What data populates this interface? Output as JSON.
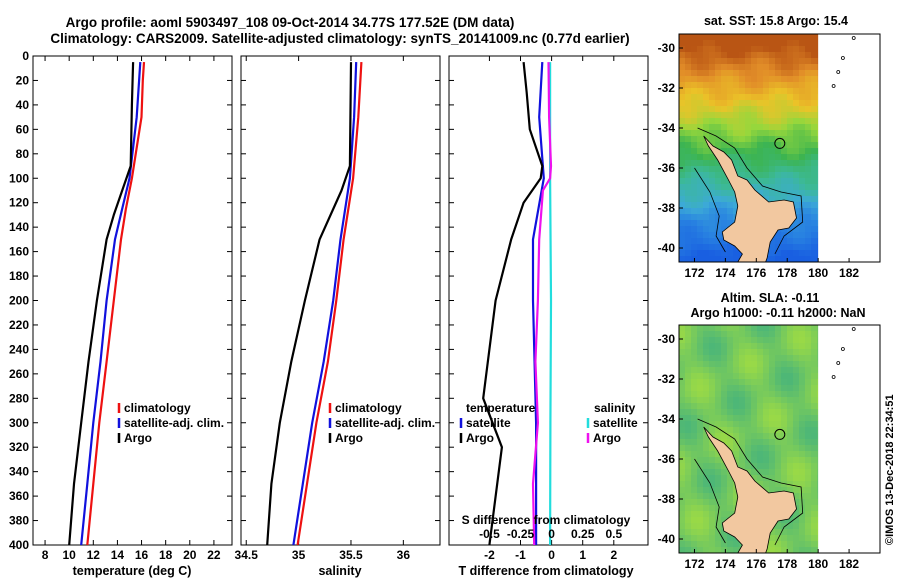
{
  "header": {
    "line1": "Argo profile: aoml 5903497_108 09-Oct-2014 34.77S 177.52E (DM data)",
    "line2": "Climatology: CARS2009. Satellite-adjusted climatology: synTS_20141009.nc (0.77d earlier)"
  },
  "watermark": "©IMOS 13-Dec-2018 22:34:51",
  "colors": {
    "climatology": "#ee1111",
    "satellite": "#1111dd",
    "argo": "#000000",
    "salinity_satellite": "#22dddd",
    "salinity_argo": "#ee11ee",
    "land": "#f2c8a0"
  },
  "chart_data": [
    {
      "type": "line",
      "name": "temperature",
      "xlabel": "temperature (deg C)",
      "ylabel": "",
      "xlim": [
        7,
        23.5
      ],
      "ylim": [
        400,
        0
      ],
      "xticks": [
        8,
        10,
        12,
        14,
        16,
        18,
        20,
        22
      ],
      "yticks": [
        0,
        20,
        40,
        60,
        80,
        100,
        120,
        140,
        160,
        180,
        200,
        220,
        240,
        260,
        280,
        300,
        320,
        340,
        360,
        380,
        400
      ],
      "legend": {
        "position": "bottom-right",
        "labels": [
          "climatology",
          "satellite-adj. clim.",
          "Argo"
        ]
      },
      "series": [
        {
          "name": "climatology",
          "color": "#ee1111",
          "depth": [
            5,
            20,
            50,
            75,
            100,
            125,
            150,
            200,
            250,
            300,
            350,
            400
          ],
          "values": [
            16.2,
            16.1,
            16.0,
            15.6,
            15.2,
            14.7,
            14.3,
            13.7,
            13.1,
            12.5,
            12.0,
            11.5
          ]
        },
        {
          "name": "satellite-adj. clim.",
          "color": "#1111dd",
          "depth": [
            5,
            20,
            50,
            75,
            100,
            125,
            150,
            200,
            250,
            300,
            350,
            400
          ],
          "values": [
            15.9,
            15.8,
            15.6,
            15.3,
            15.0,
            14.4,
            13.8,
            13.1,
            12.6,
            12.0,
            11.5,
            11.0
          ]
        },
        {
          "name": "Argo",
          "color": "#000000",
          "depth": [
            5,
            40,
            90,
            110,
            130,
            150,
            200,
            250,
            300,
            350,
            400
          ],
          "values": [
            15.3,
            15.2,
            15.1,
            14.4,
            13.7,
            13.1,
            12.3,
            11.6,
            11.0,
            10.4,
            10.0
          ]
        }
      ]
    },
    {
      "type": "line",
      "name": "salinity",
      "xlabel": "salinity",
      "ylabel": "",
      "xlim": [
        34.45,
        36.35
      ],
      "ylim": [
        400,
        0
      ],
      "xticks": [
        34.5,
        35,
        35.5,
        36
      ],
      "xticklabels": [
        "34.5",
        "35",
        "35.5",
        "36"
      ],
      "legend": {
        "position": "bottom-right",
        "labels": [
          "climatology",
          "satellite-adj. clim.",
          "Argo"
        ]
      },
      "series": [
        {
          "name": "climatology",
          "color": "#ee1111",
          "depth": [
            5,
            50,
            100,
            150,
            200,
            250,
            300,
            350,
            400
          ],
          "values": [
            35.6,
            35.57,
            35.52,
            35.43,
            35.36,
            35.28,
            35.17,
            35.08,
            34.99
          ]
        },
        {
          "name": "satellite-adj. clim.",
          "color": "#1111dd",
          "depth": [
            5,
            50,
            100,
            150,
            200,
            250,
            300,
            350,
            400
          ],
          "values": [
            35.55,
            35.53,
            35.49,
            35.4,
            35.33,
            35.24,
            35.13,
            35.04,
            34.95
          ]
        },
        {
          "name": "Argo",
          "color": "#000000",
          "depth": [
            5,
            90,
            110,
            150,
            200,
            250,
            300,
            350,
            400
          ],
          "values": [
            35.5,
            35.49,
            35.41,
            35.2,
            35.06,
            34.93,
            34.82,
            34.74,
            34.7
          ]
        }
      ]
    },
    {
      "type": "line",
      "name": "difference",
      "xlabel": "T difference from climatology",
      "xlabel_top": "S difference from climatology",
      "xlim": [
        -3.3,
        3.1
      ],
      "ylim": [
        400,
        0
      ],
      "xticks": [
        -2,
        -1,
        0,
        1,
        2
      ],
      "xticklabels": [
        "-2",
        "-1",
        "0",
        "1",
        "2"
      ],
      "s_xticks": [
        -0.5,
        -0.25,
        0,
        0.25,
        0.5
      ],
      "s_xticklabels": [
        "-0.5",
        "-0.25",
        "0",
        "0.25",
        "0.5"
      ],
      "s_scale": "x_position = S_diff * 4",
      "legend": {
        "position": "bottom",
        "temperature_title": "temperature",
        "salinity_title": "salinity",
        "temperature_labels": [
          "satellite",
          "Argo"
        ],
        "salinity_labels": [
          "satellite",
          "Argo"
        ]
      },
      "series": [
        {
          "name": "T satellite",
          "color": "#1111dd",
          "depth": [
            5,
            50,
            100,
            150,
            200,
            300,
            400
          ],
          "values": [
            -0.3,
            -0.4,
            -0.25,
            -0.6,
            -0.6,
            -0.5,
            -0.5
          ]
        },
        {
          "name": "T Argo",
          "color": "#000000",
          "depth": [
            5,
            30,
            60,
            90,
            100,
            120,
            150,
            200,
            280,
            320,
            400
          ],
          "values": [
            -0.9,
            -0.8,
            -0.7,
            -0.3,
            -0.35,
            -0.9,
            -1.3,
            -1.8,
            -2.2,
            -1.6,
            -2.0
          ]
        },
        {
          "name": "S satellite",
          "color": "#22dddd",
          "depth": [
            5,
            100,
            200,
            300,
            400
          ],
          "values": [
            -0.0125,
            -0.0125,
            -0.005,
            -0.01,
            -0.0125
          ]
        },
        {
          "name": "S Argo",
          "color": "#ee11ee",
          "depth": [
            5,
            50,
            90,
            100,
            110,
            150,
            200,
            250,
            300,
            350,
            400
          ],
          "values": [
            -0.025,
            -0.02,
            -0.005,
            -0.0125,
            -0.07,
            -0.1,
            -0.11,
            -0.13,
            -0.11,
            -0.15,
            -0.14
          ]
        }
      ]
    },
    {
      "type": "heatmap",
      "name": "sst_map",
      "title": "sat. SST: 15.8 Argo: 15.4",
      "xlim": [
        171,
        184
      ],
      "ylim": [
        -40.7,
        -29.3
      ],
      "xticks": [
        172,
        174,
        176,
        178,
        180,
        182
      ],
      "yticks": [
        -30,
        -32,
        -34,
        -36,
        -38,
        -40
      ],
      "data_extent_lon_max": 180,
      "argo_position": [
        177.52,
        -34.77
      ]
    },
    {
      "type": "heatmap",
      "name": "sla_map",
      "title_line1": "Altim. SLA: -0.11",
      "title_line2": "Argo h1000: -0.11 h2000: NaN",
      "xlim": [
        171,
        184
      ],
      "ylim": [
        -40.7,
        -29.3
      ],
      "xticks": [
        172,
        174,
        176,
        178,
        180,
        182
      ],
      "yticks": [
        -30,
        -32,
        -34,
        -36,
        -38,
        -40
      ],
      "data_extent_lon_max": 180,
      "argo_position": [
        177.52,
        -34.77
      ]
    }
  ]
}
